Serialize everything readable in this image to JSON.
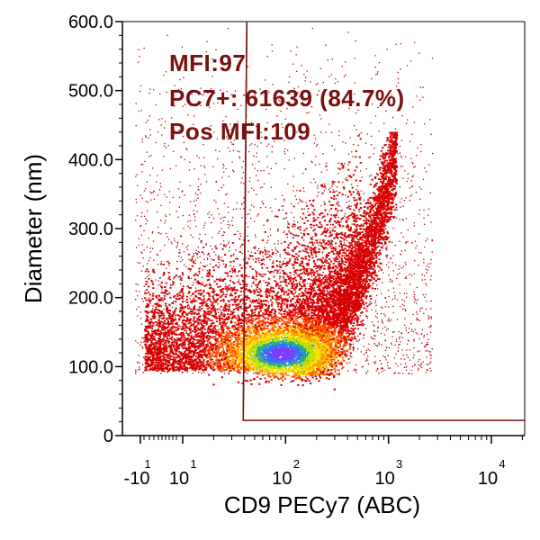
{
  "chart_data": {
    "type": "heatmap",
    "subtype": "flow-cytometry density scatter",
    "xlabel": "CD9 PECy7 (ABC)",
    "ylabel": "Diameter (nm)",
    "x_scale": "log",
    "y_scale": "linear",
    "ylim": [
      0,
      600
    ],
    "y_ticks": [
      {
        "value": 0,
        "label": "0"
      },
      {
        "value": 100,
        "label": "100.0"
      },
      {
        "value": 200,
        "label": "200.0"
      },
      {
        "value": 300,
        "label": "300.0"
      },
      {
        "value": 400,
        "label": "400.0"
      },
      {
        "value": 500,
        "label": "500.0"
      },
      {
        "value": 600,
        "label": "600.0"
      }
    ],
    "x_ticks": [
      {
        "value": -10,
        "base": "-10",
        "exp": "1"
      },
      {
        "value": 10,
        "base": "10",
        "exp": "1"
      },
      {
        "value": 100,
        "base": "10",
        "exp": "2"
      },
      {
        "value": 1000,
        "base": "10",
        "exp": "3"
      },
      {
        "value": 10000,
        "base": "10",
        "exp": "4"
      }
    ],
    "gate": {
      "x_threshold": 42,
      "y_min": 22,
      "y_max": 600,
      "color": "#7a1010"
    },
    "annotations": [
      "MFI:97",
      "PC7+: 61639 (84.7%)",
      "Pos MFI:109"
    ],
    "density_peak": {
      "x": 90,
      "y": 120
    },
    "colors": {
      "low": "#c80000",
      "mid": "#ff8c00",
      "high": "#ffff00",
      "peak": "#7a3cff",
      "annotation": "#7a1010"
    },
    "grid": false
  }
}
